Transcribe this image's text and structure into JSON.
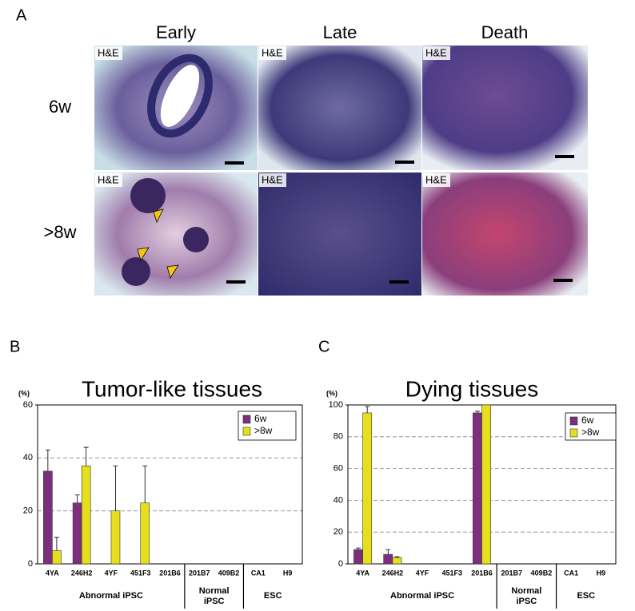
{
  "panel_a": {
    "panel_label": "A",
    "columns": [
      "Early",
      "Late",
      "Death"
    ],
    "rows": [
      "6w",
      ">8w"
    ],
    "stains": [
      [
        "H&E",
        "H&E",
        "H&E"
      ],
      [
        "H&E",
        "H&E",
        "H&E"
      ]
    ]
  },
  "chart_data": [
    {
      "type": "bar",
      "panel_label": "B",
      "title": "Tumor-like tissues",
      "y_unit": "(%)",
      "groups": [
        {
          "name": [
            "Abnormal iPSC"
          ],
          "categories": [
            "4YA",
            "246H2",
            "4YF",
            "451F3",
            "201B6"
          ]
        },
        {
          "name": [
            "Normal",
            "iPSC"
          ],
          "categories": [
            "201B7",
            "409B2"
          ]
        },
        {
          "name": [
            "ESC"
          ],
          "categories": [
            "CA1",
            "H9"
          ]
        }
      ],
      "series": [
        {
          "name": "6w",
          "color": "#7d2f7c",
          "values": [
            35,
            23,
            0,
            0,
            0,
            0,
            0,
            0,
            0
          ],
          "errors": [
            8,
            3,
            null,
            null,
            null,
            null,
            null,
            null,
            null
          ]
        },
        {
          "name": ">8w",
          "color": "#e6df1e",
          "values": [
            5,
            37,
            20,
            23,
            0,
            0,
            0,
            0,
            0
          ],
          "errors": [
            5,
            7,
            17,
            14,
            null,
            null,
            null,
            null,
            null
          ]
        }
      ],
      "ylim": [
        0,
        60
      ],
      "yticks": [
        0,
        20,
        40,
        60
      ],
      "grid": true,
      "legend": "upper right"
    },
    {
      "type": "bar",
      "panel_label": "C",
      "title": "Dying tissues",
      "y_unit": "(%)",
      "groups": [
        {
          "name": [
            "Abnormal iPSC"
          ],
          "categories": [
            "4YA",
            "246H2",
            "4YF",
            "451F3",
            "201B6"
          ]
        },
        {
          "name": [
            "Normal",
            "iPSC"
          ],
          "categories": [
            "201B7",
            "409B2"
          ]
        },
        {
          "name": [
            "ESC"
          ],
          "categories": [
            "CA1",
            "H9"
          ]
        }
      ],
      "series": [
        {
          "name": "6w",
          "color": "#7d2f7c",
          "values": [
            9,
            6,
            0,
            0,
            95,
            0,
            0,
            0,
            0
          ],
          "errors": [
            1,
            3,
            null,
            null,
            1,
            null,
            null,
            null,
            null
          ]
        },
        {
          "name": ">8w",
          "color": "#e6df1e",
          "values": [
            95,
            4,
            0,
            0,
            100,
            0,
            0,
            0,
            0
          ],
          "errors": [
            4,
            0.5,
            null,
            null,
            null,
            null,
            null,
            null,
            null
          ]
        }
      ],
      "ylim": [
        0,
        100
      ],
      "yticks": [
        0,
        20,
        40,
        60,
        80,
        100
      ],
      "grid": true,
      "legend": "upper right"
    }
  ]
}
